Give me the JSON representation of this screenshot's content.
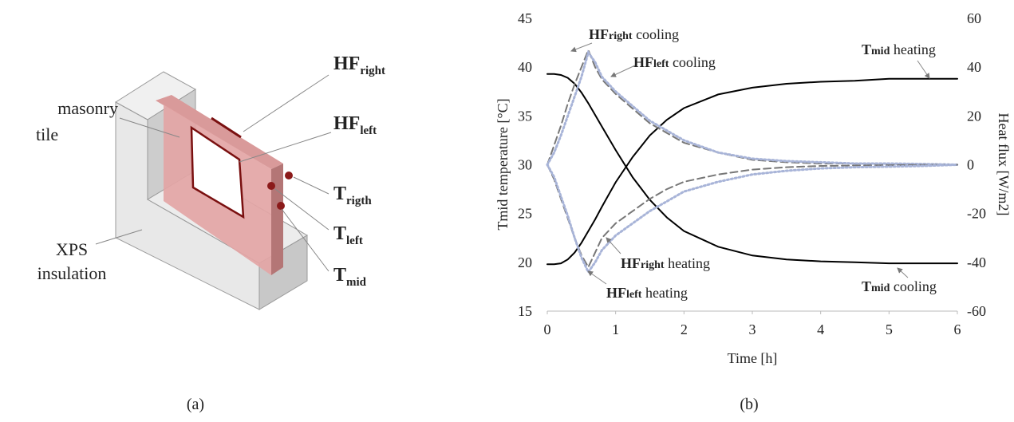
{
  "panel_labels": [
    "(a)",
    "(b)"
  ],
  "diagram": {
    "masonry_tile": [
      "masonry",
      "tile"
    ],
    "xps": [
      "XPS",
      "insulation"
    ],
    "sensors": [
      {
        "main": "HF",
        "sub": "right"
      },
      {
        "main": "HF",
        "sub": "left"
      },
      {
        "main": "T",
        "sub": "rigth"
      },
      {
        "main": "T",
        "sub": "left"
      },
      {
        "main": "T",
        "sub": "mid"
      }
    ]
  },
  "chart_data": {
    "type": "line",
    "xlabel": "Time [h]",
    "ylabel": "Tmid temperature [°C]",
    "y2label": "Heat flux [W/m2]",
    "x": [
      0,
      0.1,
      0.2,
      0.3,
      0.4,
      0.5,
      0.6,
      0.7,
      0.8,
      1,
      1.25,
      1.5,
      1.75,
      2,
      2.5,
      3,
      3.5,
      4,
      4.5,
      5,
      5.5,
      6
    ],
    "xlim": [
      0,
      6
    ],
    "xticks": [
      0,
      1,
      2,
      3,
      4,
      5,
      6
    ],
    "ylim": [
      15,
      45
    ],
    "yticks": [
      15,
      20,
      25,
      30,
      35,
      40,
      45
    ],
    "y2lim": [
      -60,
      60
    ],
    "y2ticks": [
      -60,
      -40,
      -20,
      0,
      20,
      40,
      60
    ],
    "grid": false,
    "series": [
      {
        "color": "#000000",
        "line_style": "solid",
        "values": [
          19.8,
          19.8,
          19.9,
          20.3,
          21,
          22,
          23.2,
          24.4,
          25.7,
          28.2,
          30.8,
          33,
          34.6,
          35.8,
          37.2,
          37.9,
          38.3,
          38.5,
          38.6,
          38.8,
          38.8,
          38.8
        ]
      },
      {
        "color": "#000000",
        "line_style": "solid",
        "values": [
          39.3,
          39.3,
          39.2,
          38.9,
          38.3,
          37.4,
          36.3,
          35.1,
          33.9,
          31.5,
          28.7,
          26.4,
          24.6,
          23.2,
          21.6,
          20.7,
          20.3,
          20.1,
          20,
          19.9,
          19.9,
          19.9
        ]
      },
      {
        "color": "#777777",
        "line_style": "dashed",
        "axis": "y2",
        "values": [
          0,
          8,
          16,
          25,
          33,
          40,
          47,
          40,
          35,
          29,
          23,
          17,
          13,
          9,
          5,
          2,
          1,
          0.5,
          0.5,
          0.3,
          0.2,
          0
        ]
      },
      {
        "color": "#a8b4d8",
        "line_style": "dotted",
        "axis": "y2",
        "values": [
          0,
          5,
          12,
          20,
          28,
          36,
          46,
          42,
          36,
          30,
          24,
          18,
          14,
          10,
          5,
          2.5,
          1.5,
          1,
          0.5,
          0.5,
          0.3,
          0
        ]
      },
      {
        "color": "#777777",
        "line_style": "dashed",
        "axis": "y2",
        "values": [
          0,
          -6,
          -14,
          -22,
          -30,
          -37,
          -42,
          -36,
          -30,
          -24,
          -19,
          -14,
          -10,
          -7,
          -4,
          -2,
          -1,
          -0.5,
          -0.3,
          -0.2,
          -0.1,
          0
        ]
      },
      {
        "color": "#a8b4d8",
        "line_style": "dotted",
        "axis": "y2",
        "values": [
          0,
          -5,
          -13,
          -21,
          -30,
          -38,
          -44,
          -40,
          -35,
          -29,
          -24,
          -19,
          -15,
          -11,
          -7,
          -4,
          -2.5,
          -1.5,
          -1,
          -0.8,
          -0.5,
          0
        ]
      }
    ],
    "annotations": [
      {
        "main": "HF",
        "sub": "right",
        "rest": " cooling"
      },
      {
        "main": "HF",
        "sub": "left",
        "rest": " cooling"
      },
      {
        "main": "T",
        "sub": "mid",
        "rest": " heating"
      },
      {
        "main": "HF",
        "sub": "right",
        "rest": " heating"
      },
      {
        "main": "HF",
        "sub": "left",
        "rest": " heating"
      },
      {
        "main": "T",
        "sub": "mid",
        "rest": " cooling"
      }
    ]
  }
}
